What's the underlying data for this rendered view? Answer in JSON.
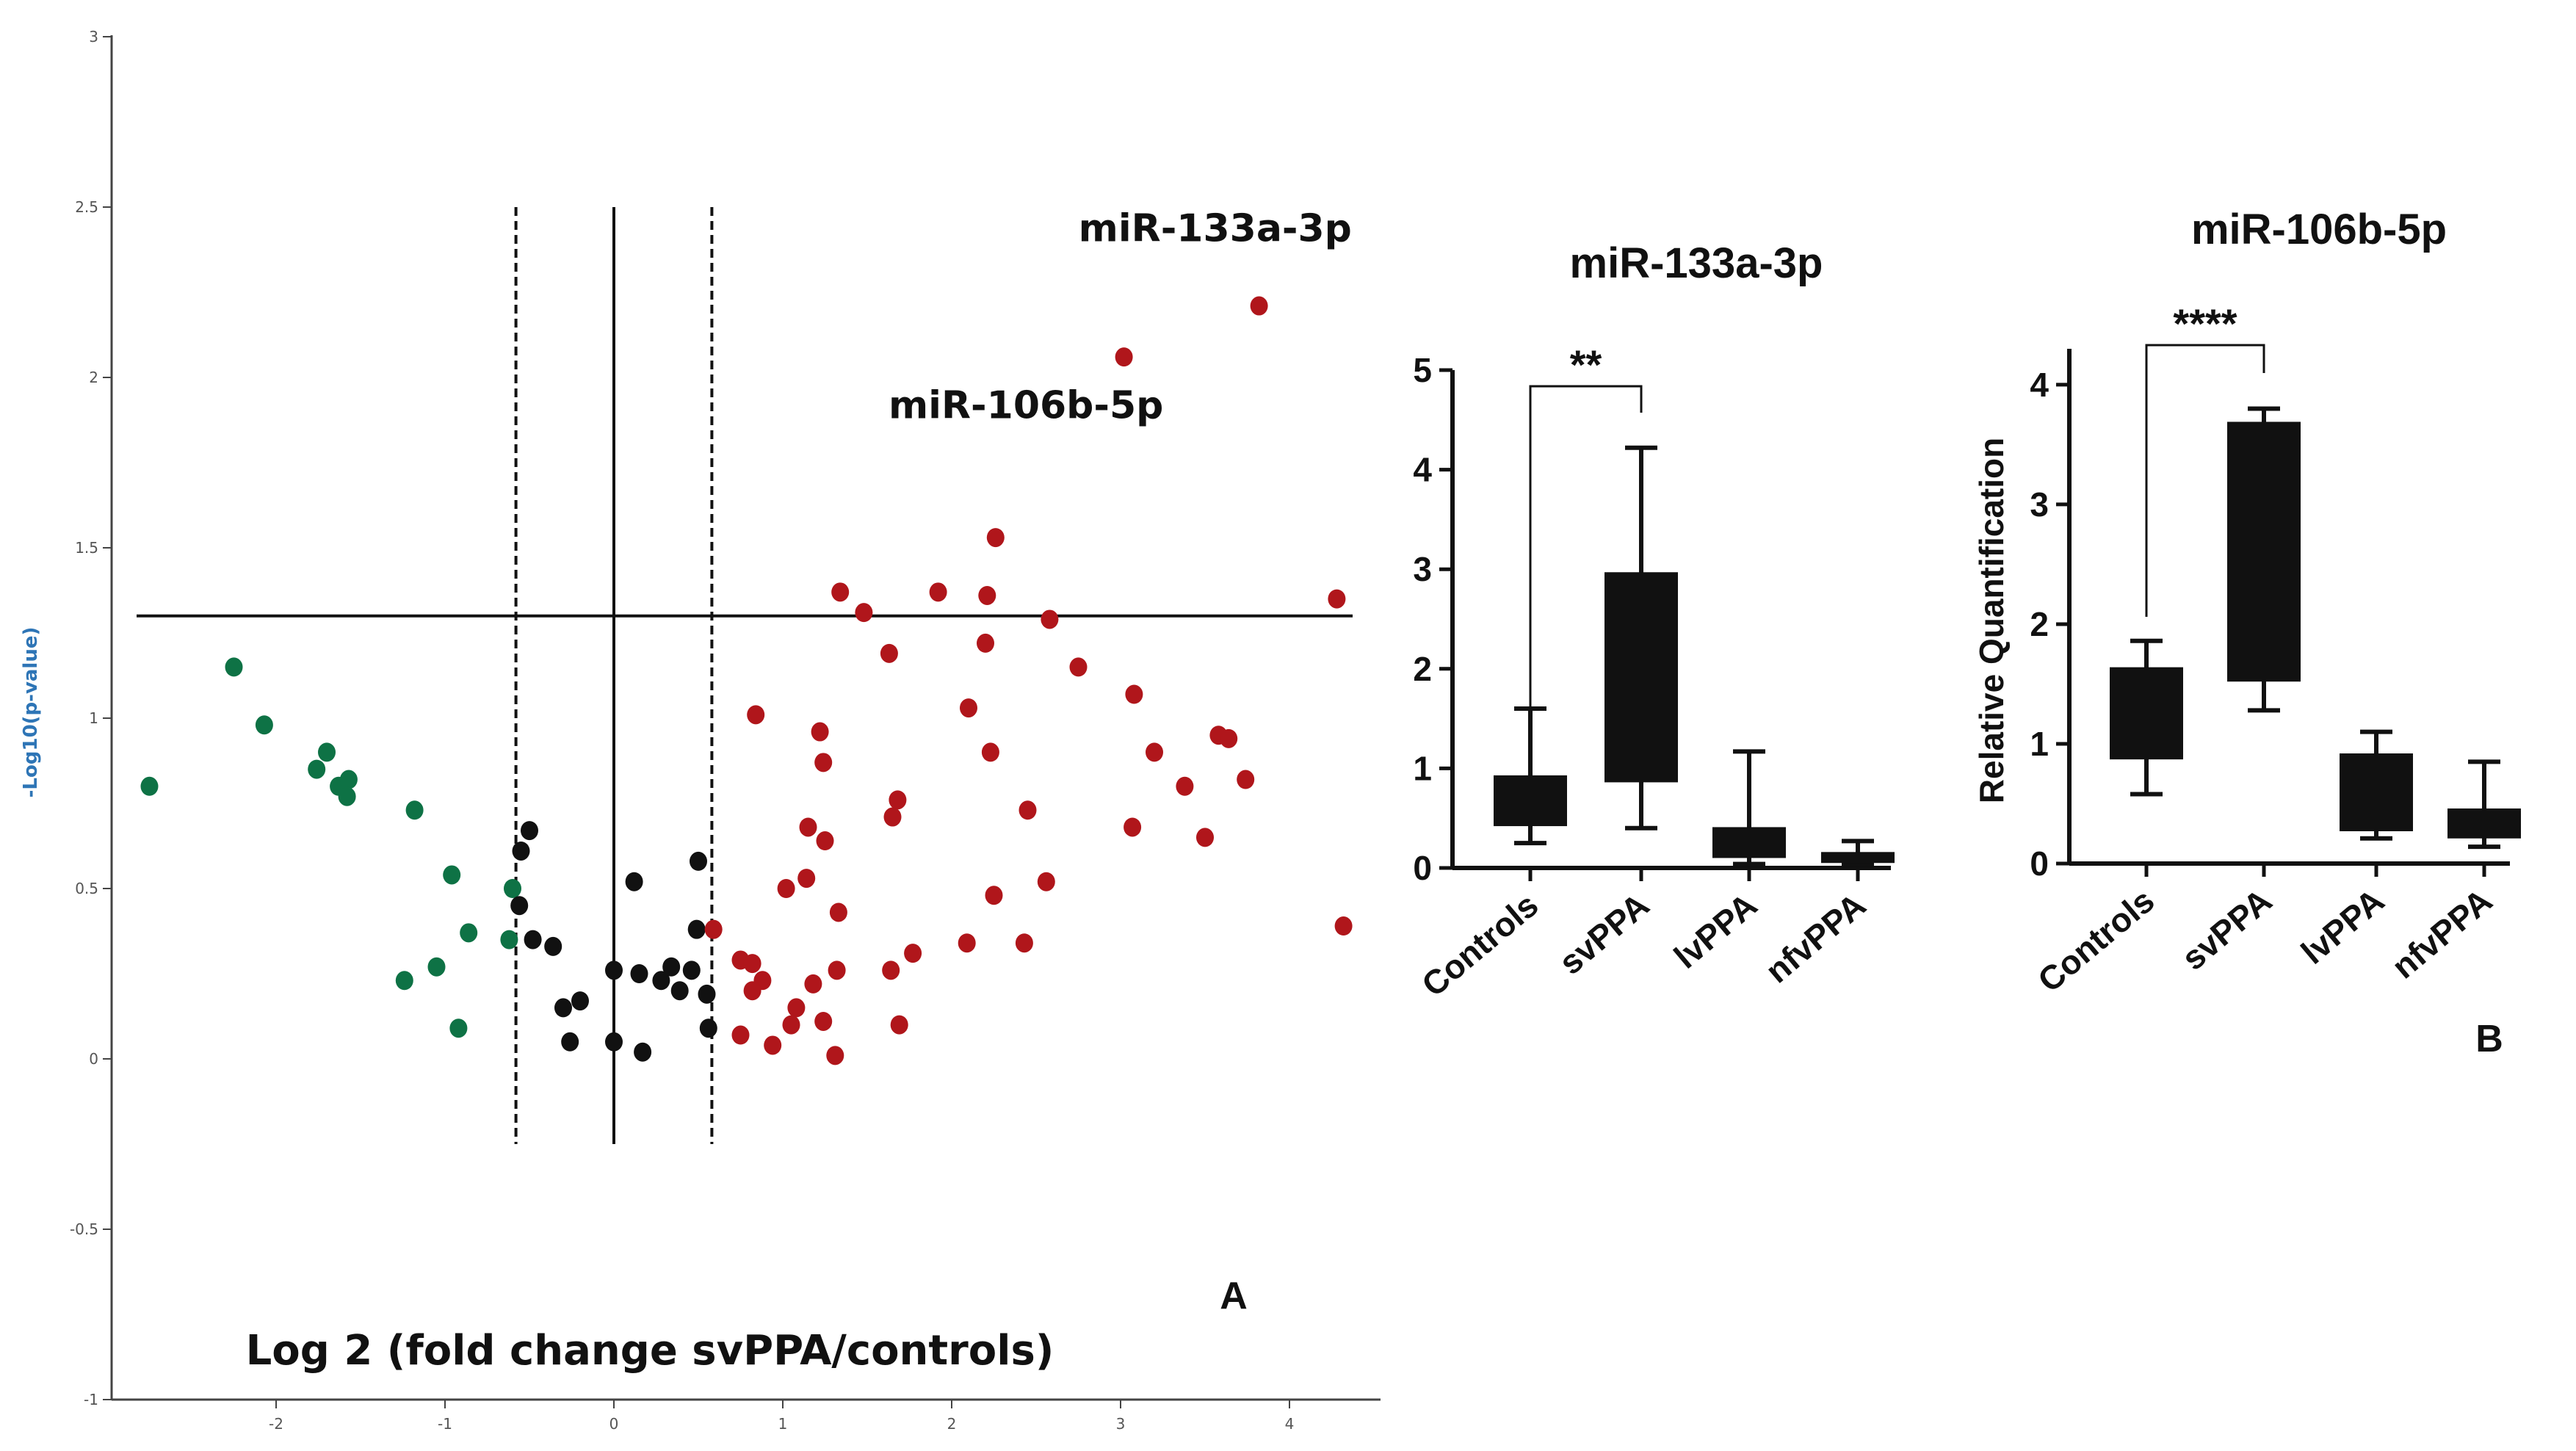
{
  "chart_data": [
    {
      "id": "volcano",
      "type": "scatter",
      "panel_label": "A",
      "xlabel": "Log 2 (fold change svPPA/controls)",
      "ylabel": "-Log10(p-value)",
      "xlim": [
        -3,
        4.5
      ],
      "ylim": [
        -1,
        3
      ],
      "x_ticks": [
        "-2",
        "-1",
        "0",
        "1",
        "2",
        "3",
        "4"
      ],
      "y_ticks": [
        "-1",
        "-0.5",
        "0",
        "0.5",
        "1",
        "1.5",
        "2",
        "2.5",
        "3"
      ],
      "significance_threshold": 1.3,
      "fold_change_thresholds": [
        -0.58,
        0.58
      ],
      "annotations": [
        {
          "text": "miR-133a-3p",
          "x": 3.56,
          "y": 2.4
        },
        {
          "text": "miR-106b-5p",
          "x": 2.44,
          "y": 1.88
        }
      ],
      "colors": {
        "down": "#0e7245",
        "neutral": "#111111",
        "up": "#b0161b"
      },
      "series": [
        {
          "name": "down",
          "points": [
            [
              -2.75,
              0.8
            ],
            [
              -2.25,
              1.15
            ],
            [
              -2.07,
              0.98
            ],
            [
              -1.7,
              0.9
            ],
            [
              -1.76,
              0.85
            ],
            [
              -1.63,
              0.8
            ],
            [
              -1.57,
              0.82
            ],
            [
              -1.58,
              0.77
            ],
            [
              -1.18,
              0.73
            ],
            [
              -0.96,
              0.54
            ],
            [
              -0.86,
              0.37
            ],
            [
              -1.05,
              0.27
            ],
            [
              -1.24,
              0.23
            ],
            [
              -0.92,
              0.09
            ],
            [
              -0.6,
              0.5
            ],
            [
              -0.62,
              0.35
            ]
          ]
        },
        {
          "name": "neutral",
          "points": [
            [
              -0.5,
              0.67
            ],
            [
              -0.55,
              0.61
            ],
            [
              -0.56,
              0.45
            ],
            [
              -0.48,
              0.35
            ],
            [
              -0.36,
              0.33
            ],
            [
              -0.3,
              0.15
            ],
            [
              -0.2,
              0.17
            ],
            [
              -0.26,
              0.05
            ],
            [
              0.0,
              0.26
            ],
            [
              0.12,
              0.52
            ],
            [
              0.15,
              0.25
            ],
            [
              0.28,
              0.23
            ],
            [
              0.34,
              0.27
            ],
            [
              0.46,
              0.26
            ],
            [
              0.49,
              0.38
            ],
            [
              0.5,
              0.58
            ],
            [
              0.55,
              0.19
            ],
            [
              0.39,
              0.2
            ],
            [
              0.56,
              0.09
            ],
            [
              0.0,
              0.05
            ],
            [
              0.17,
              0.02
            ]
          ]
        },
        {
          "name": "up",
          "points": [
            [
              3.82,
              2.21
            ],
            [
              3.02,
              2.06
            ],
            [
              2.26,
              1.53
            ],
            [
              1.34,
              1.37
            ],
            [
              1.48,
              1.31
            ],
            [
              1.92,
              1.37
            ],
            [
              2.21,
              1.36
            ],
            [
              2.58,
              1.29
            ],
            [
              4.28,
              1.35
            ],
            [
              2.2,
              1.22
            ],
            [
              1.63,
              1.19
            ],
            [
              2.75,
              1.15
            ],
            [
              0.84,
              1.01
            ],
            [
              2.1,
              1.03
            ],
            [
              3.08,
              1.07
            ],
            [
              1.22,
              0.96
            ],
            [
              2.23,
              0.9
            ],
            [
              3.2,
              0.9
            ],
            [
              1.24,
              0.87
            ],
            [
              3.58,
              0.95
            ],
            [
              3.64,
              0.94
            ],
            [
              3.74,
              0.82
            ],
            [
              3.38,
              0.8
            ],
            [
              1.68,
              0.76
            ],
            [
              1.65,
              0.71
            ],
            [
              2.45,
              0.73
            ],
            [
              1.15,
              0.68
            ],
            [
              3.07,
              0.68
            ],
            [
              3.5,
              0.65
            ],
            [
              1.25,
              0.64
            ],
            [
              1.14,
              0.53
            ],
            [
              1.02,
              0.5
            ],
            [
              2.56,
              0.52
            ],
            [
              1.33,
              0.43
            ],
            [
              2.25,
              0.48
            ],
            [
              0.59,
              0.38
            ],
            [
              2.09,
              0.34
            ],
            [
              2.43,
              0.34
            ],
            [
              1.77,
              0.31
            ],
            [
              4.32,
              0.39
            ],
            [
              0.75,
              0.29
            ],
            [
              0.82,
              0.28
            ],
            [
              0.88,
              0.23
            ],
            [
              0.82,
              0.2
            ],
            [
              1.32,
              0.26
            ],
            [
              1.64,
              0.26
            ],
            [
              1.18,
              0.22
            ],
            [
              1.08,
              0.15
            ],
            [
              1.24,
              0.11
            ],
            [
              1.05,
              0.1
            ],
            [
              0.75,
              0.07
            ],
            [
              0.94,
              0.04
            ],
            [
              1.31,
              0.01
            ],
            [
              1.69,
              0.1
            ]
          ]
        }
      ]
    },
    {
      "id": "box-133a",
      "type": "box",
      "title": "miR-133a-3p",
      "ylabel": "",
      "ylim": [
        0,
        5
      ],
      "y_ticks": [
        "0",
        "1",
        "2",
        "3",
        "4",
        "5"
      ],
      "categories": [
        "Controls",
        "svPPA",
        "lvPPA",
        "nfvPPA"
      ],
      "boxes": [
        {
          "min": 0.25,
          "q1": 0.42,
          "q3": 0.93,
          "max": 1.6
        },
        {
          "min": 0.4,
          "q1": 0.86,
          "q3": 2.97,
          "max": 4.22
        },
        {
          "min": 0.04,
          "q1": 0.1,
          "q3": 0.41,
          "max": 1.17
        },
        {
          "min": 0.03,
          "q1": 0.05,
          "q3": 0.16,
          "max": 0.27
        }
      ],
      "significance": {
        "from": 0,
        "to": 1,
        "label": "**"
      }
    },
    {
      "id": "box-106b",
      "type": "box",
      "title": "miR-106b-5p",
      "panel_label": "B",
      "ylabel": "Relative Quantification",
      "ylim": [
        0,
        4.3
      ],
      "y_ticks": [
        "0",
        "1",
        "2",
        "3",
        "4"
      ],
      "categories": [
        "Controls",
        "svPPA",
        "lvPPA",
        "nfvPPA"
      ],
      "boxes": [
        {
          "min": 0.58,
          "q1": 0.87,
          "q3": 1.64,
          "max": 1.86
        },
        {
          "min": 1.28,
          "q1": 1.52,
          "q3": 3.69,
          "max": 3.8
        },
        {
          "min": 0.21,
          "q1": 0.27,
          "q3": 0.92,
          "max": 1.1
        },
        {
          "min": 0.14,
          "q1": 0.21,
          "q3": 0.46,
          "max": 0.85
        }
      ],
      "significance": {
        "from": 0,
        "to": 1,
        "label": "****"
      }
    }
  ]
}
